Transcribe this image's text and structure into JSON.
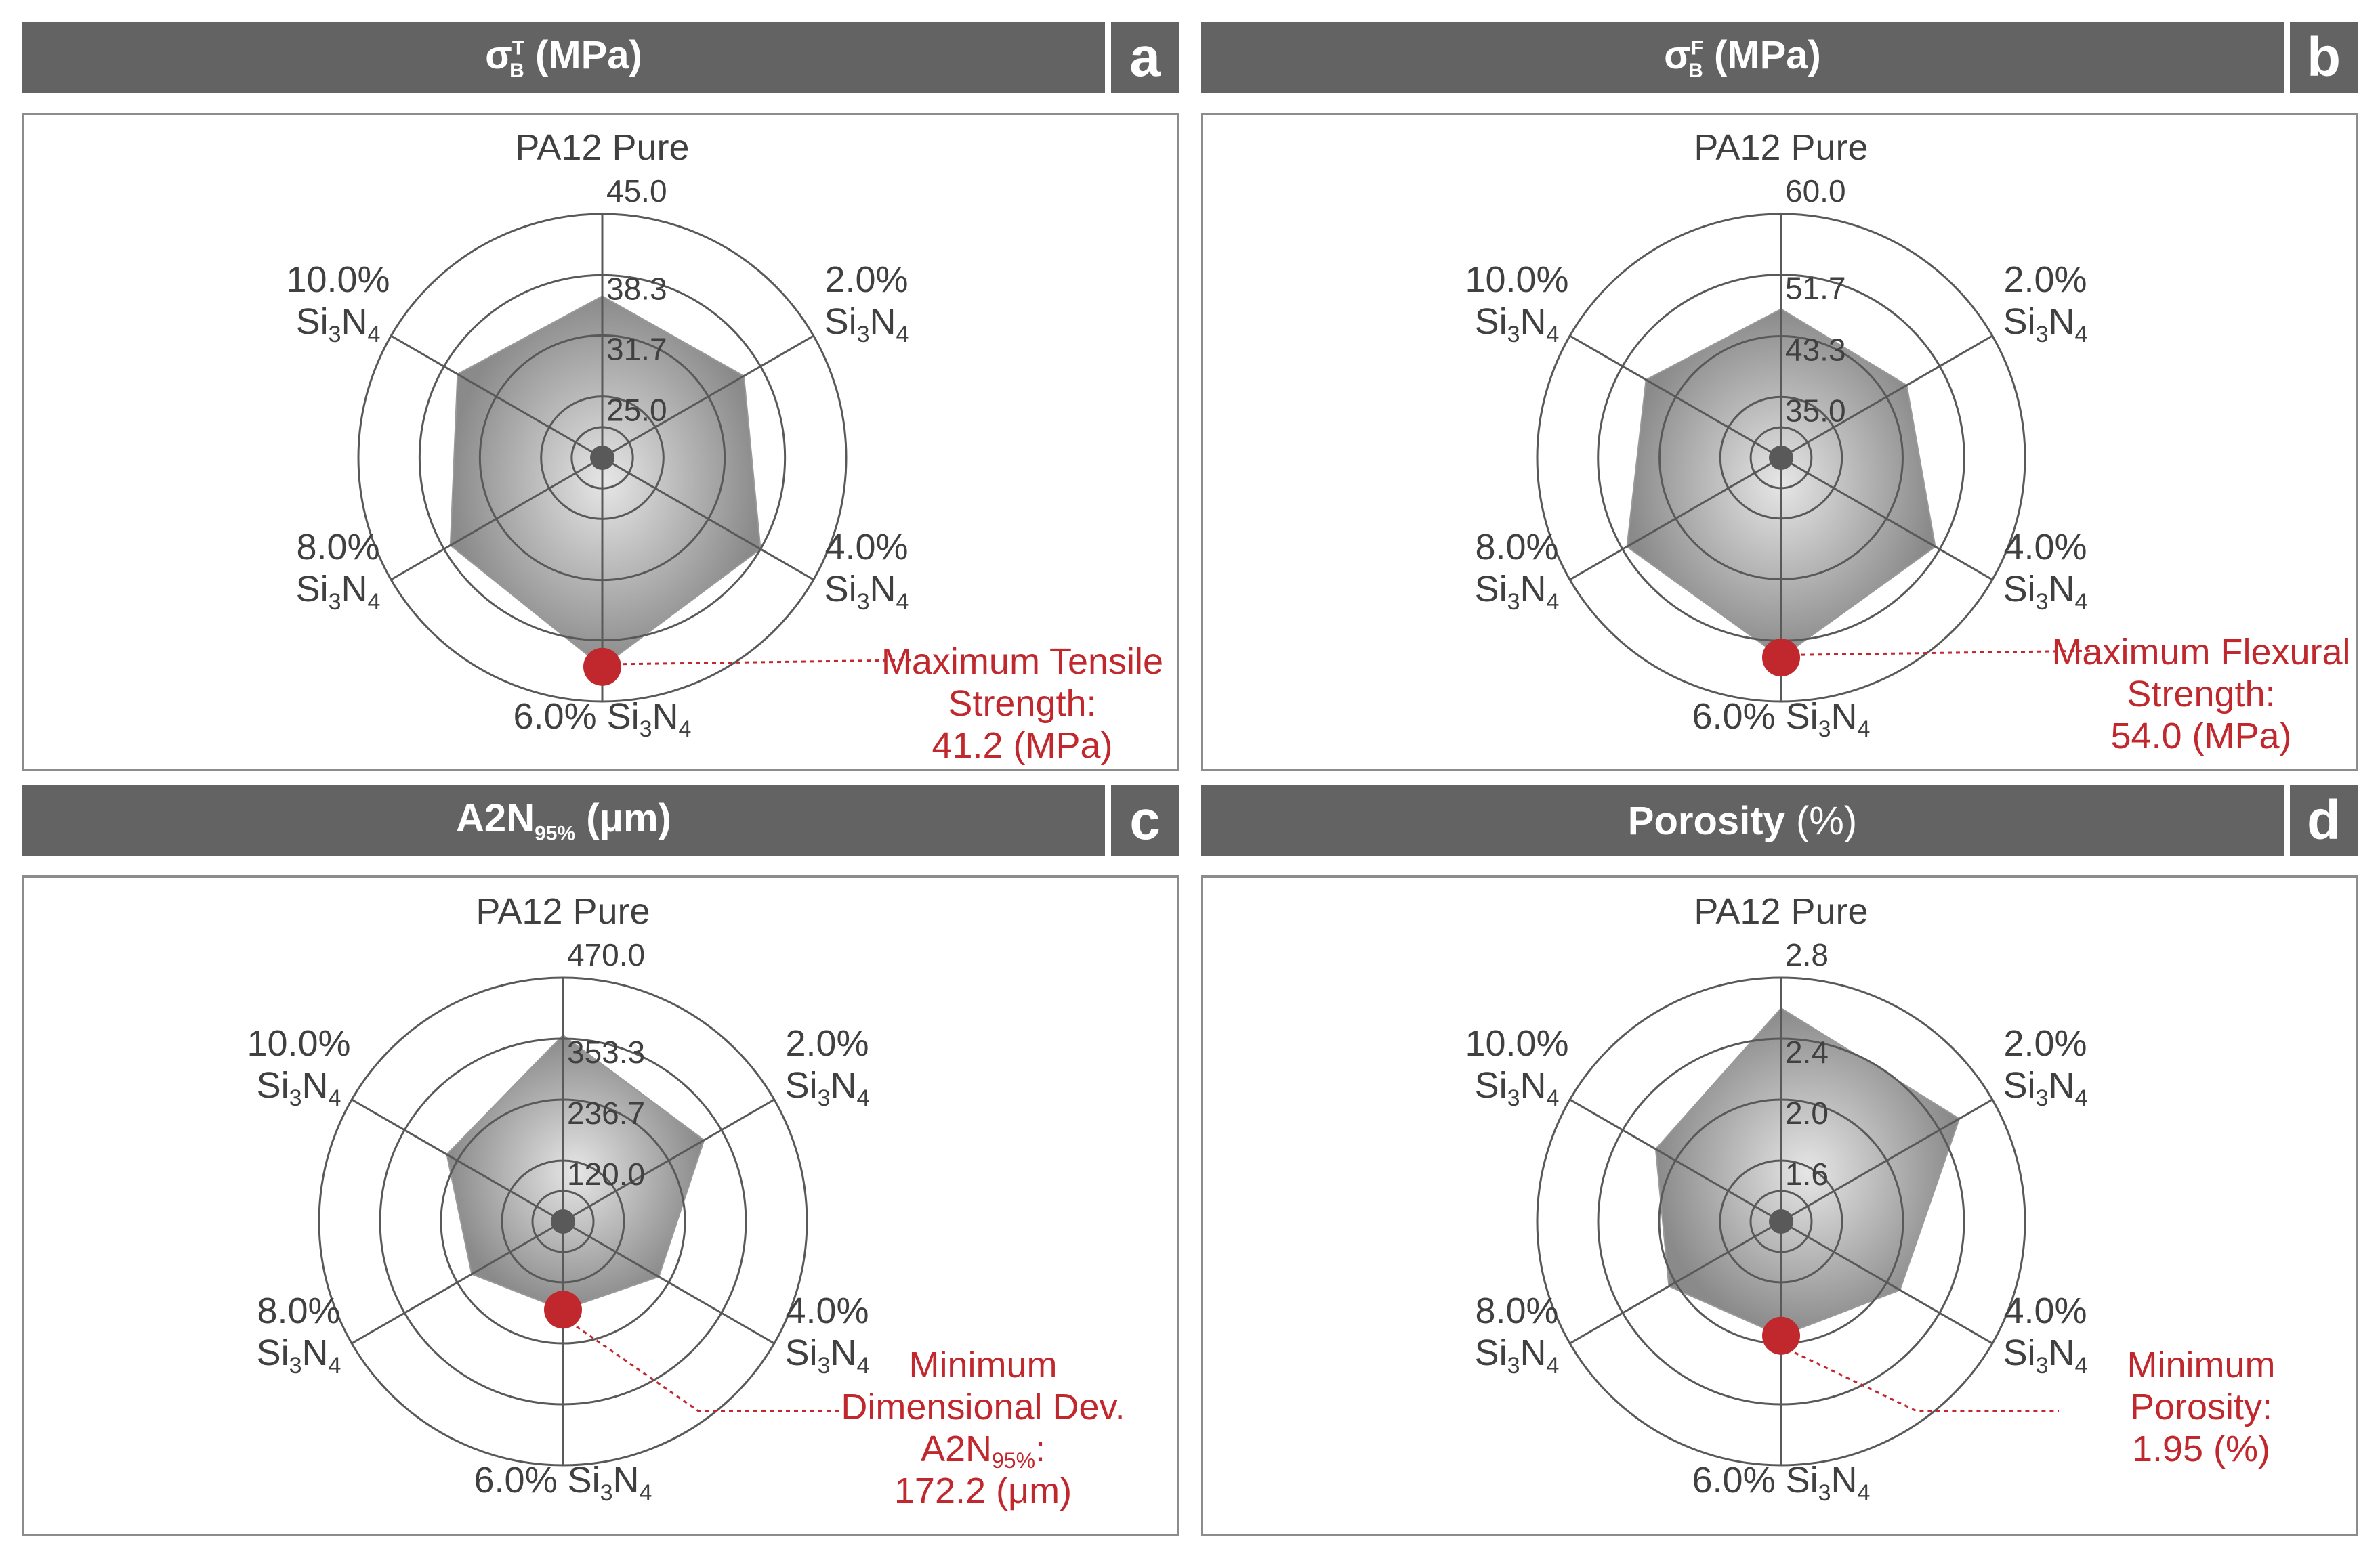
{
  "colors": {
    "header_bg": "#636363",
    "header_text": "#ffffff",
    "frame": "#8c8c8c",
    "grid": "#595959",
    "polygon_light": "#d9d9d9",
    "polygon_dark": "#8a8a8a",
    "highlight": "#c0282d",
    "label_text": "#404040"
  },
  "panels": [
    {
      "letter": "a",
      "title_main": "σ",
      "title_sup": "T",
      "title_sub": "B",
      "title_unit": " (MPa)",
      "chart_data": {
        "type": "radar",
        "categories": [
          "PA12 Pure",
          "2.0% Si3N4",
          "4.0% Si3N4",
          "6.0% Si3N4",
          "8.0% Si3N4",
          "10.0% Si3N4"
        ],
        "values": [
          36.0,
          36.2,
          38.3,
          41.2,
          37.5,
          36.6
        ],
        "rmin": 18.3,
        "rmax": 45.0,
        "ticks": [
          "45.0",
          "38.3",
          "31.7",
          "25.0"
        ],
        "tick_values": [
          45.0,
          38.3,
          31.7,
          25.0
        ],
        "highlight_index": 3,
        "annotation": [
          "Maximum Tensile",
          "Strength:",
          "41.2 (MPa)"
        ]
      }
    },
    {
      "letter": "b",
      "title_main": "σ",
      "title_sup": "F",
      "title_sub": "B",
      "title_unit": " (MPa)",
      "chart_data": {
        "type": "radar",
        "categories": [
          "PA12 Pure",
          "2.0% Si3N4",
          "4.0% Si3N4",
          "6.0% Si3N4",
          "8.0% Si3N4",
          "10.0% Si3N4"
        ],
        "values": [
          47.0,
          46.5,
          51.0,
          54.0,
          51.0,
          48.0
        ],
        "rmin": 26.7,
        "rmax": 60.0,
        "ticks": [
          "60.0",
          "51.7",
          "43.3",
          "35.0"
        ],
        "tick_values": [
          60.0,
          51.7,
          43.3,
          35.0
        ],
        "highlight_index": 3,
        "annotation": [
          "Maximum Flexural",
          "Strength:",
          "54.0 (MPa)"
        ]
      }
    },
    {
      "letter": "c",
      "title_main": "A2N",
      "title_sub": "95%",
      "title_unit": " (μm)",
      "chart_data": {
        "type": "radar",
        "categories": [
          "PA12 Pure",
          "2.0% Si3N4",
          "4.0% Si3N4",
          "6.0% Si3N4",
          "8.0% Si3N4",
          "10.0% Si3N4"
        ],
        "values": [
          360.0,
          315.0,
          215.0,
          172.2,
          205.0,
          260.0
        ],
        "rmin": 3.3,
        "rmax": 470.0,
        "ticks": [
          "470.0",
          "353.3",
          "236.7",
          "120.0"
        ],
        "tick_values": [
          470.0,
          353.3,
          236.7,
          120.0
        ],
        "highlight_index": 3,
        "annotation": [
          "Minimum",
          "Dimensional Dev.",
          "A2N95%:",
          "172.2 (μm)"
        ]
      }
    },
    {
      "letter": "d",
      "title_main": "Porosity",
      "title_unit": " (%)",
      "title_unit_normal": true,
      "chart_data": {
        "type": "radar",
        "categories": [
          "PA12 Pure",
          "2.0% Si3N4",
          "4.0% Si3N4",
          "6.0% Si3N4",
          "8.0% Si3N4",
          "10.0% Si3N4"
        ],
        "values": [
          2.6,
          2.55,
          2.1,
          1.95,
          2.05,
          2.15
        ],
        "rmin": 1.2,
        "rmax": 2.8,
        "ticks": [
          "2.8",
          "2.4",
          "2.0",
          "1.6"
        ],
        "tick_values": [
          2.8,
          2.4,
          2.0,
          1.6
        ],
        "highlight_index": 3,
        "annotation": [
          "Minimum",
          "Porosity:",
          "1.95 (%)"
        ]
      }
    }
  ]
}
